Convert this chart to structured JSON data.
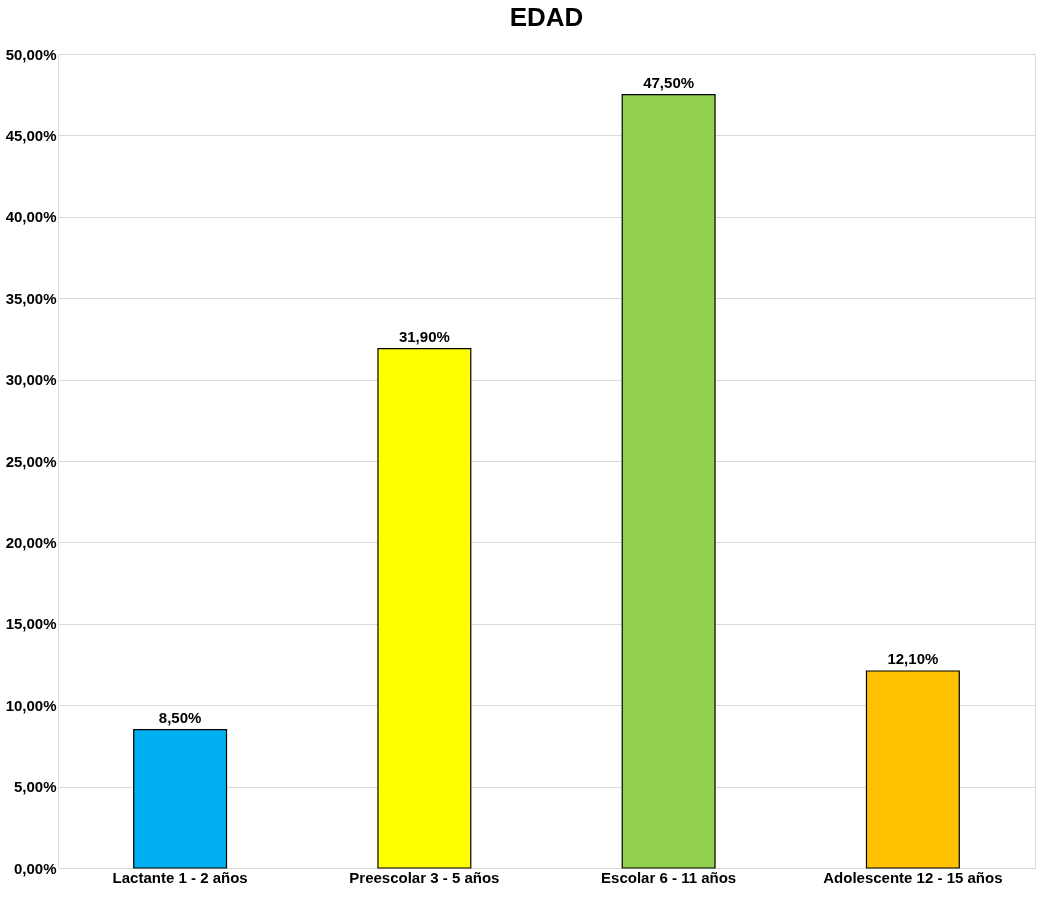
{
  "chart_data": {
    "type": "bar",
    "title": "EDAD",
    "categories": [
      "Lactante 1 - 2 años",
      "Preescolar 3 - 5 años",
      "Escolar 6 - 11 años",
      "Adolescente 12 - 15 años"
    ],
    "values": [
      8.5,
      31.9,
      47.5,
      12.1
    ],
    "colors": [
      "#00b0f0",
      "#ffff00",
      "#92d050",
      "#ffc000"
    ],
    "value_labels": [
      "8,50%",
      "31,90%",
      "47,50%",
      "12,10%"
    ],
    "ylim": [
      0,
      50
    ],
    "yticks": [
      {
        "value": 0,
        "label": "0,00%"
      },
      {
        "value": 5,
        "label": "5,00%"
      },
      {
        "value": 10,
        "label": "10,00%"
      },
      {
        "value": 15,
        "label": "15,00%"
      },
      {
        "value": 20,
        "label": "20,00%"
      },
      {
        "value": 25,
        "label": "25,00%"
      },
      {
        "value": 30,
        "label": "30,00%"
      },
      {
        "value": 35,
        "label": "35,00%"
      },
      {
        "value": 40,
        "label": "40,00%"
      },
      {
        "value": 45,
        "label": "45,00%"
      },
      {
        "value": 50,
        "label": "50,00%"
      }
    ],
    "grid": "y"
  }
}
